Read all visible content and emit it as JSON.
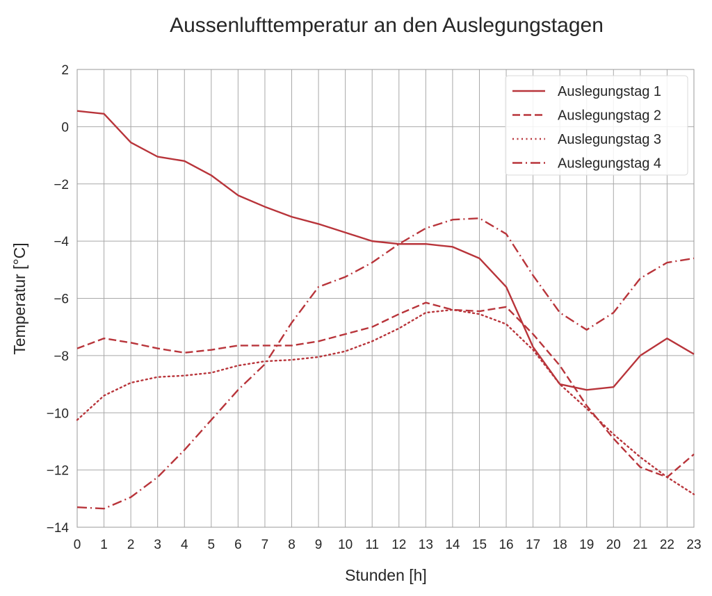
{
  "chart_data": {
    "type": "line",
    "title": "Aussenlufttemperatur an den Auslegungstagen",
    "xlabel": "Stunden [h]",
    "ylabel": "Temperatur [°C]",
    "x": [
      0,
      1,
      2,
      3,
      4,
      5,
      6,
      7,
      8,
      9,
      10,
      11,
      12,
      13,
      14,
      15,
      16,
      17,
      18,
      19,
      20,
      21,
      22,
      23
    ],
    "xlim": [
      0,
      23
    ],
    "ylim": [
      -14,
      2
    ],
    "yticks": [
      2,
      0,
      -2,
      -4,
      -6,
      -8,
      -10,
      -12,
      -14
    ],
    "ytick_labels": [
      "2",
      "0",
      "−2",
      "−4",
      "−6",
      "−8",
      "−10",
      "−12",
      "−14"
    ],
    "grid": true,
    "legend_position": "upper right",
    "color": "#b8343a",
    "series": [
      {
        "name": "Auslegungstag 1",
        "style": "solid",
        "values": [
          0.55,
          0.45,
          -0.55,
          -1.05,
          -1.2,
          -1.7,
          -2.4,
          -2.8,
          -3.15,
          -3.4,
          -3.7,
          -4.0,
          -4.1,
          -4.1,
          -4.2,
          -4.6,
          -5.6,
          -7.7,
          -9.0,
          -9.2,
          -9.1,
          -8.0,
          -7.4,
          -7.95
        ]
      },
      {
        "name": "Auslegungstag 2",
        "style": "dashed",
        "values": [
          -7.75,
          -7.4,
          -7.55,
          -7.75,
          -7.9,
          -7.8,
          -7.65,
          -7.65,
          -7.65,
          -7.5,
          -7.25,
          -7.0,
          -6.55,
          -6.15,
          -6.4,
          -6.45,
          -6.3,
          -7.25,
          -8.35,
          -9.75,
          -10.9,
          -11.9,
          -12.25,
          -11.45
        ]
      },
      {
        "name": "Auslegungstag 3",
        "style": "dotted",
        "values": [
          -10.25,
          -9.4,
          -8.95,
          -8.75,
          -8.7,
          -8.6,
          -8.35,
          -8.2,
          -8.15,
          -8.05,
          -7.85,
          -7.5,
          -7.05,
          -6.5,
          -6.4,
          -6.55,
          -6.9,
          -7.8,
          -9.0,
          -9.85,
          -10.75,
          -11.55,
          -12.25,
          -12.85
        ]
      },
      {
        "name": "Auslegungstag 4",
        "style": "dashdot",
        "values": [
          -13.3,
          -13.35,
          -12.95,
          -12.25,
          -11.3,
          -10.25,
          -9.2,
          -8.3,
          -6.85,
          -5.6,
          -5.25,
          -4.75,
          -4.1,
          -3.55,
          -3.25,
          -3.2,
          -3.75,
          -5.2,
          -6.5,
          -7.1,
          -6.5,
          -5.3,
          -4.75,
          -4.6
        ]
      }
    ]
  }
}
